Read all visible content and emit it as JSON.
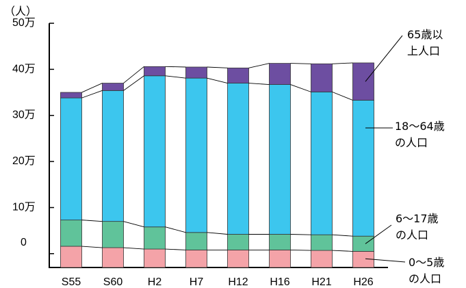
{
  "chart_data": {
    "type": "bar",
    "stacked": true,
    "y_unit_label": "（人）",
    "categories": [
      "S55",
      "S60",
      "H2",
      "H7",
      "H12",
      "H16",
      "H21",
      "H26"
    ],
    "y_ticks": [
      "0",
      "10万",
      "20万",
      "30万",
      "40万",
      "50万"
    ],
    "ylim": [
      -3,
      50
    ],
    "grid": false,
    "series": [
      {
        "name": "0～5歳の人口",
        "color": "#f4a3a8",
        "values": [
          1.6,
          1.3,
          1.0,
          0.8,
          0.8,
          0.8,
          0.7,
          0.5
        ]
      },
      {
        "name": "6～17歳の人口",
        "color": "#60c39a",
        "values": [
          5.7,
          5.7,
          4.8,
          3.8,
          3.4,
          3.4,
          3.4,
          3.3
        ]
      },
      {
        "name": "18～64歳の人口",
        "color": "#3cc6ee",
        "values": [
          26.5,
          28.4,
          32.8,
          33.5,
          32.8,
          32.5,
          31.0,
          29.5
        ]
      },
      {
        "name": "65歳以上人口",
        "color": "#6d4ea1",
        "values": [
          1.2,
          1.6,
          2.0,
          2.4,
          3.3,
          4.6,
          6.1,
          8.1
        ]
      }
    ],
    "legend": [
      {
        "lines": [
          "65歳以",
          "上人口"
        ]
      },
      {
        "lines": [
          "18～64歳",
          "の人口"
        ]
      },
      {
        "lines": [
          "6～17歳",
          "の人口"
        ]
      },
      {
        "lines": [
          "0～5歳",
          "の人口"
        ]
      }
    ]
  }
}
